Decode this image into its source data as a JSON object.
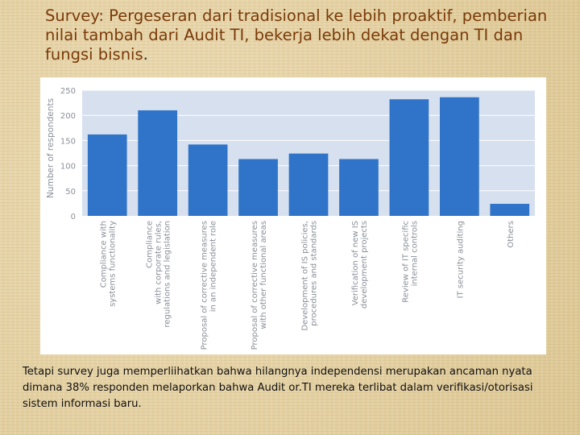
{
  "slide": {
    "title": "Survey: Pergeseran dari tradisional ke lebih proaktif, pemberian nilai tambah dari Audit TI, bekerja lebih dekat dengan TI dan fungsi bisnis",
    "title_end": ".",
    "title_color": "#7a3a08",
    "body_lines": [
      "Tetapi survey juga memperliihatkan bahwa hilangnya independensi  merupakan ancaman nyata",
      "dimana  38% responden melaporkan bahwa Audit or.TI mereka terlibat dalam verifikasi/otorisasi",
      "sistem informasi baru."
    ]
  },
  "chart_data": {
    "type": "bar",
    "ylabel": "Number of respondents",
    "xlabel": "",
    "ylim": [
      0,
      250
    ],
    "yticks": [
      "0",
      "50",
      "100",
      "150",
      "200",
      "250"
    ],
    "grid": true,
    "bar_color": "#2f74c9",
    "plot_background": "#d6e0ef",
    "categories": [
      "Compliance with systems functionality",
      "Compliance with corporate rules, regulations and legislation",
      "Proposal of corrective measures in an independent role",
      "Proposal of corrective measures with other functional areas",
      "Development of IS policies, procedures and standards",
      "Verification of new IS development projects",
      "Review of IT specific internal controls",
      "IT security auditing",
      "Others"
    ],
    "category_label_lines": [
      [
        "Compliance with",
        "systems functionality"
      ],
      [
        "Compliance",
        "with corporate rules,",
        "regulations and legislation"
      ],
      [
        "Proposal of corrective measures",
        "in an independent role"
      ],
      [
        "Proposal of corrective measures",
        "with other functional areas"
      ],
      [
        "Development of IS policies,",
        "procedures and standards"
      ],
      [
        "Verification of new IS",
        "development projects"
      ],
      [
        "Review of IT specific",
        "internal controls"
      ],
      [
        "IT security auditing"
      ],
      [
        "Others"
      ]
    ],
    "values": [
      162,
      210,
      142,
      113,
      124,
      113,
      232,
      236,
      24
    ]
  }
}
